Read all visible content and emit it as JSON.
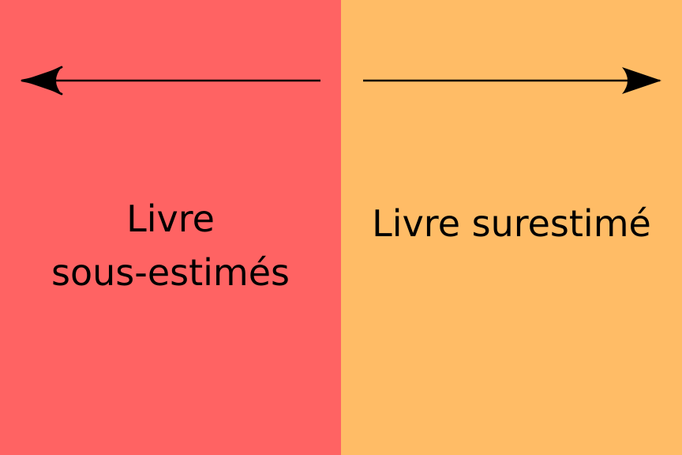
{
  "colors": {
    "left_panel": "#FF6363",
    "right_panel": "#FFBC66",
    "ink": "#000000"
  },
  "left_panel": {
    "arrow_direction": "left",
    "label_line1": "Livre",
    "label_line2": "sous-estimés"
  },
  "right_panel": {
    "arrow_direction": "right",
    "label": "Livre surestimé"
  }
}
